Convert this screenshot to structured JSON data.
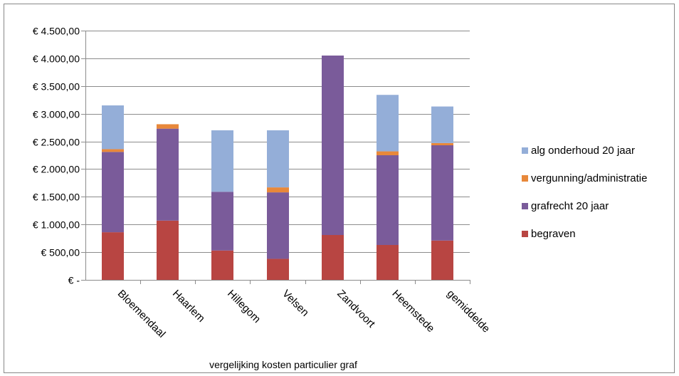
{
  "chart_data": {
    "type": "bar",
    "stacked": true,
    "title": "",
    "xlabel": "vergelijking kosten particulier graf",
    "ylabel": "",
    "categories": [
      "Bloemendaal",
      "Haarlem",
      "Hillegom",
      "Velsen",
      "Zandvoort",
      "Heemstede",
      "gemiddelde"
    ],
    "series": [
      {
        "name": "begraven",
        "color": "#b84542",
        "values": [
          860,
          1070,
          530,
          380,
          810,
          630,
          710
        ]
      },
      {
        "name": "grafrecht 20 jaar",
        "color": "#7a5b9a",
        "values": [
          1450,
          1660,
          1060,
          1200,
          3240,
          1620,
          1720
        ]
      },
      {
        "name": "vergunning/administratie",
        "color": "#e8883a",
        "values": [
          50,
          80,
          0,
          90,
          0,
          70,
          40
        ]
      },
      {
        "name": "alg onderhoud 20 jaar",
        "color": "#94aed8",
        "values": [
          790,
          0,
          1110,
          1030,
          0,
          1020,
          660
        ]
      }
    ],
    "y_tick_labels": [
      "€ -",
      "€ 500,00",
      "€ 1.000,00",
      "€ 1.500,00",
      "€ 2.000,00",
      "€ 2.500,00",
      "€ 3.000,00",
      "€ 3.500,00",
      "€ 4.000,00",
      "€ 4.500,00"
    ],
    "ylim": [
      0,
      4500
    ],
    "ytick_step": 500,
    "grid": true,
    "legend_position": "right"
  }
}
